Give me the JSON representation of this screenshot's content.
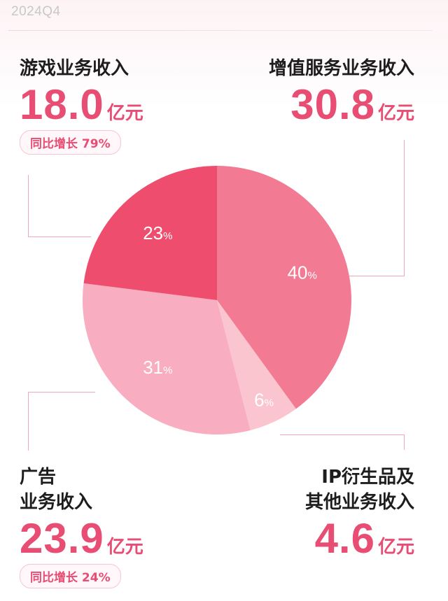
{
  "period": "2024Q4",
  "segments": {
    "games": {
      "title": "游戏业务收入",
      "amount": "18.0",
      "unit": "亿元",
      "growth": "同比增长 79%"
    },
    "vas": {
      "title": "增值服务业务收入",
      "amount": "30.8",
      "unit": "亿元"
    },
    "ads": {
      "title_line1": "广告",
      "title_line2": "业务收入",
      "amount": "23.9",
      "unit": "亿元",
      "growth": "同比增长 24%"
    },
    "ip": {
      "title_line1": "IP衍生品及",
      "title_line2": "其他业务收入",
      "amount": "4.6",
      "unit": "亿元"
    }
  },
  "chart_data": {
    "type": "pie",
    "start_angle_deg": 0,
    "direction": "clockwise",
    "slices": [
      {
        "label": "增值服务业务收入",
        "value": 40,
        "display": "40",
        "color": "#f27a92"
      },
      {
        "label": "IP衍生品及其他业务收入",
        "value": 6,
        "display": "6",
        "color": "#fbc5d0"
      },
      {
        "label": "广告业务收入",
        "value": 31,
        "display": "31",
        "color": "#f8aec0"
      },
      {
        "label": "游戏业务收入",
        "value": 23,
        "display": "23",
        "color": "#ef4d6e"
      }
    ],
    "percent_suffix": "%"
  },
  "colors": {
    "accent": "#e84d73",
    "leader": "#f0a9b9"
  }
}
